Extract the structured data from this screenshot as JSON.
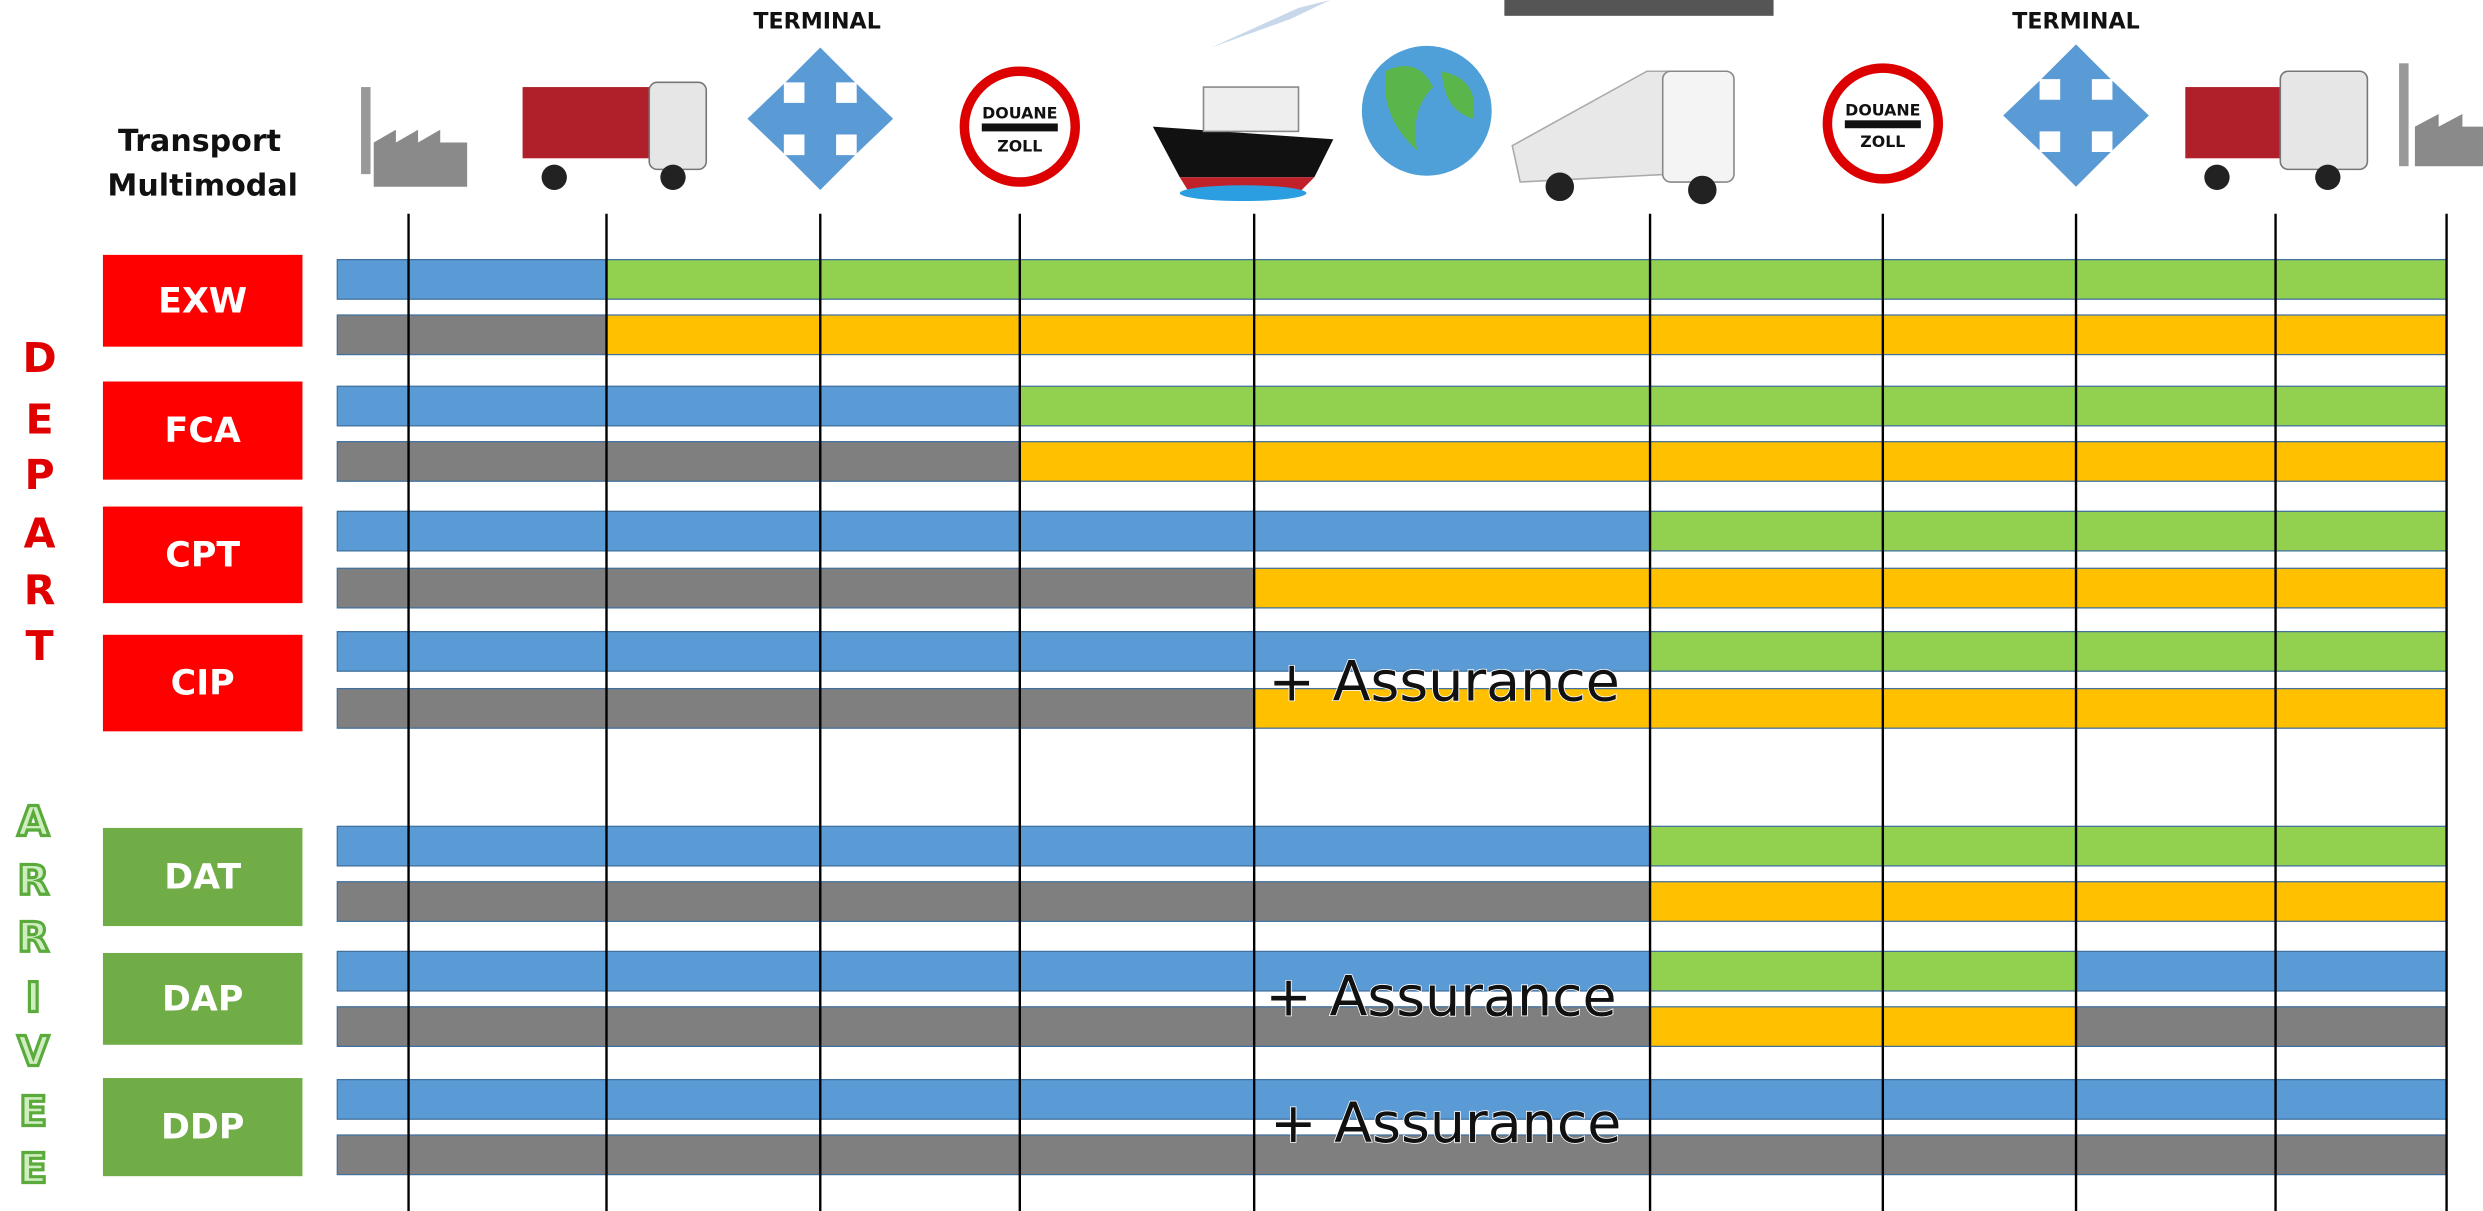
{
  "header": {
    "title_lines": [
      "Transport",
      "Multimodal"
    ],
    "terminals": [
      "TERMINAL",
      "TERMINAL"
    ],
    "customs": [
      {
        "top": "DOUANE",
        "bottom": "ZOLL"
      },
      {
        "top": "DOUANE",
        "bottom": "ZOLL"
      }
    ]
  },
  "groups": [
    {
      "letters": [
        "D",
        "E",
        "P",
        "A",
        "R",
        "T"
      ],
      "terms": [
        "EXW",
        "FCA",
        "CPT",
        "CIP"
      ]
    },
    {
      "letters": [
        "A",
        "R",
        "R",
        "I",
        "V",
        "E",
        "E"
      ],
      "terms": [
        "DAT",
        "DAP",
        "DDP"
      ]
    }
  ],
  "notes": [
    "+ Assurance",
    "+ Assurance",
    "+ Assurance"
  ]
}
